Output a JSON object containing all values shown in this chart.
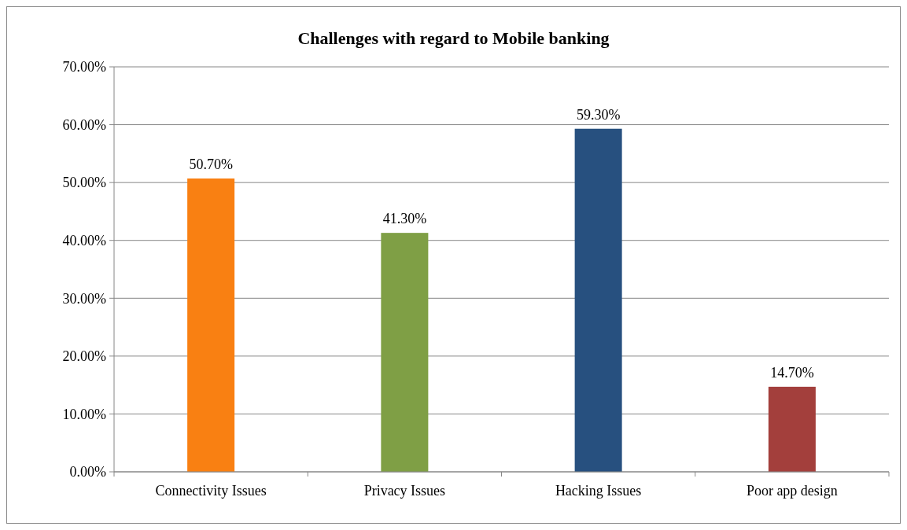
{
  "chart_data": {
    "type": "bar",
    "title": "Challenges with regard to Mobile banking",
    "categories": [
      "Connectivity Issues",
      "Privacy Issues",
      "Hacking Issues",
      "Poor app design"
    ],
    "values": [
      50.7,
      41.3,
      59.3,
      14.7
    ],
    "colors": [
      "#f98012",
      "#7f9f45",
      "#27507f",
      "#a33f3c"
    ],
    "value_labels": [
      "50.70%",
      "41.30%",
      "59.30%",
      "14.70%"
    ],
    "ylim": [
      0,
      70
    ],
    "yticks": [
      {
        "value": 0,
        "label": "0.00%"
      },
      {
        "value": 10,
        "label": "10.00%"
      },
      {
        "value": 20,
        "label": "20.00%"
      },
      {
        "value": 30,
        "label": "30.00%"
      },
      {
        "value": 40,
        "label": "40.00%"
      },
      {
        "value": 50,
        "label": "50.00%"
      },
      {
        "value": 60,
        "label": "60.00%"
      },
      {
        "value": 70,
        "label": "70.00%"
      }
    ],
    "grid": "y"
  }
}
